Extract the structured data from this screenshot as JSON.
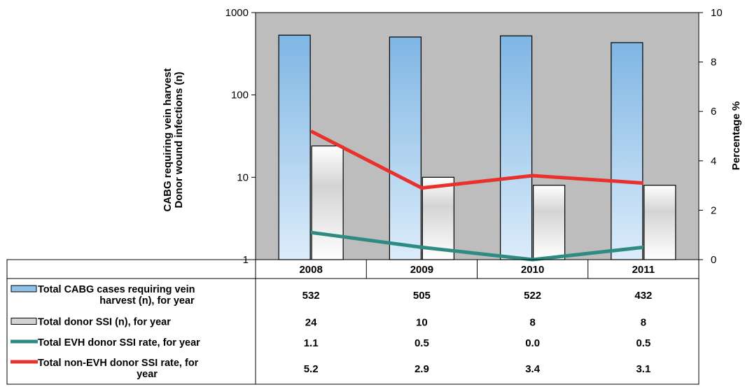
{
  "chart_data": {
    "type": "bar",
    "categories": [
      "2008",
      "2009",
      "2010",
      "2011"
    ],
    "y_left": {
      "label_lines": [
        "CABG requiring vein harvest",
        "Donor wound infections (n)"
      ],
      "scale": "log",
      "range": [
        1,
        1000
      ],
      "ticks": [
        "1",
        "10",
        "100",
        "1000"
      ]
    },
    "y_right": {
      "label": "Percentage %",
      "range": [
        0,
        10
      ],
      "ticks": [
        "0",
        "2",
        "4",
        "6",
        "8",
        "10"
      ]
    },
    "grid": false,
    "background": "#bdbdbd",
    "series": [
      {
        "name_lines": [
          "Total CABG cases requiring vein",
          "harvest (n), for year"
        ],
        "kind": "bar",
        "axis": "left",
        "values": [
          532,
          505,
          522,
          432
        ],
        "labels": [
          "532",
          "505",
          "522",
          "432"
        ],
        "color": "#7fb6e4"
      },
      {
        "name_lines": [
          "Total  donor SSI (n), for year"
        ],
        "kind": "bar",
        "axis": "left",
        "values": [
          24,
          10,
          8,
          8
        ],
        "labels": [
          "24",
          "10",
          "8",
          "8"
        ],
        "color": "#d4d4d4"
      },
      {
        "name_lines": [
          "Total EVH  donor SSI rate, for year"
        ],
        "kind": "line",
        "axis": "right",
        "values": [
          1.1,
          0.5,
          0.0,
          0.5
        ],
        "labels": [
          "1.1",
          "0.5",
          "0.0",
          "0.5"
        ],
        "color": "#2e8b82"
      },
      {
        "name_lines": [
          "Total  non-EVH  donor SSI rate, for",
          "year"
        ],
        "kind": "line",
        "axis": "right",
        "values": [
          5.2,
          2.9,
          3.4,
          3.1
        ],
        "labels": [
          "5.2",
          "2.9",
          "3.4",
          "3.1"
        ],
        "color": "#e8302d"
      }
    ]
  }
}
